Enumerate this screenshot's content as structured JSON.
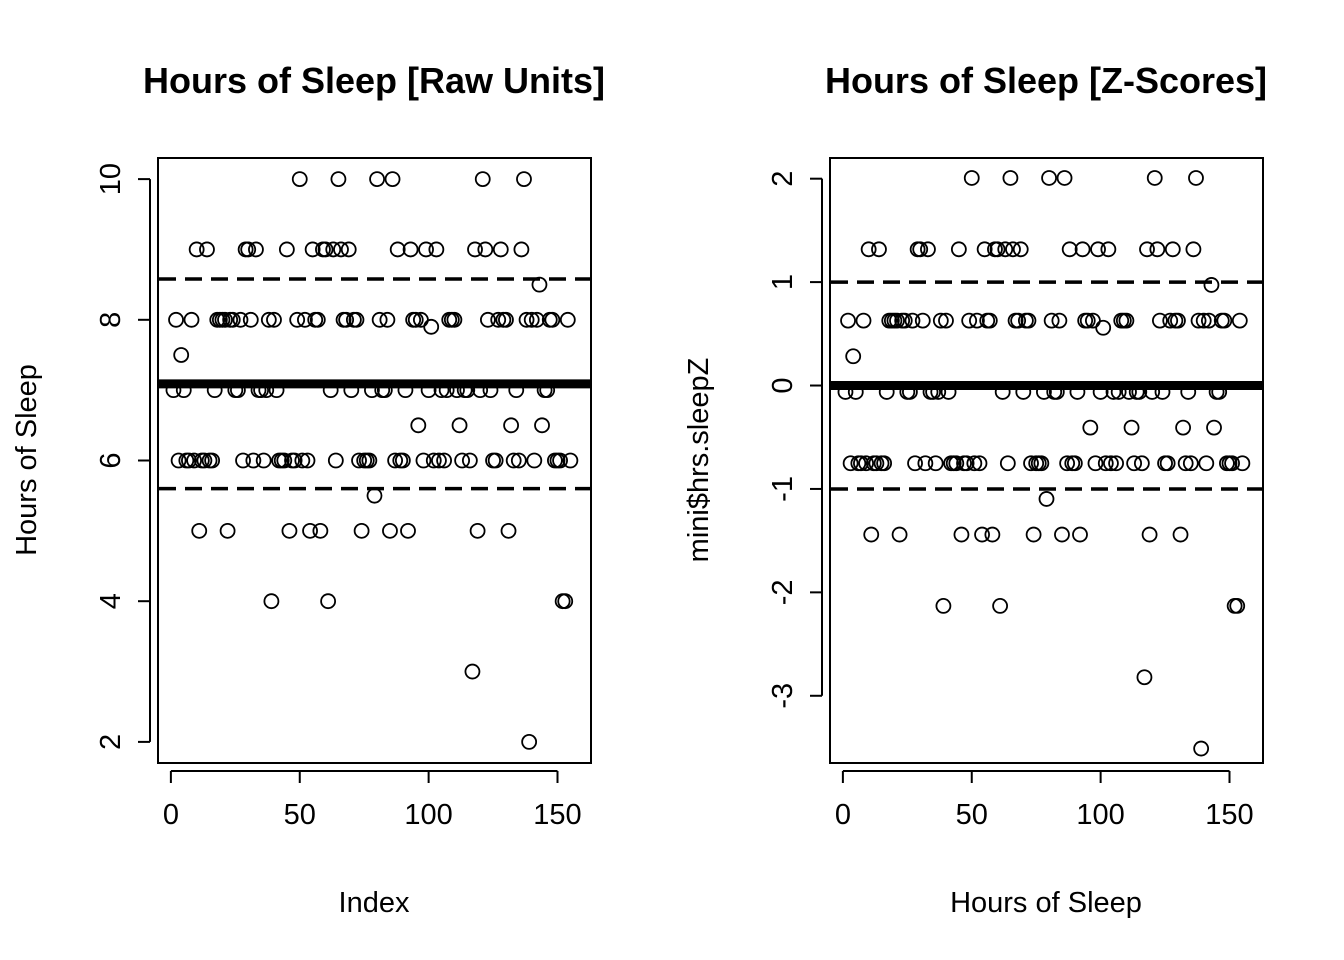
{
  "chart_data": [
    {
      "type": "scatter",
      "title": "Hours of Sleep [Raw Units]",
      "xlabel": "Index",
      "ylabel": "Hours of Sleep",
      "xlim": [
        -5,
        163
      ],
      "ylim": [
        1.7,
        10.3
      ],
      "xticks": [
        0,
        50,
        100,
        150
      ],
      "yticks": [
        2,
        4,
        6,
        8,
        10
      ],
      "xtick_labels": [
        "0",
        "50",
        "100",
        "150"
      ],
      "ytick_labels": [
        "2",
        "4",
        "6",
        "8",
        "10"
      ],
      "grid": false,
      "reference_lines": [
        {
          "y": 7.09,
          "style": "thick-solid"
        },
        {
          "y": 8.58,
          "style": "dashed"
        },
        {
          "y": 5.6,
          "style": "dashed"
        }
      ],
      "points": [
        [
          1,
          7
        ],
        [
          2,
          8
        ],
        [
          3,
          6
        ],
        [
          4,
          7.5
        ],
        [
          5,
          7
        ],
        [
          6,
          6
        ],
        [
          7,
          6
        ],
        [
          8,
          8
        ],
        [
          9,
          6
        ],
        [
          10,
          9
        ],
        [
          11,
          5
        ],
        [
          12,
          6
        ],
        [
          13,
          6
        ],
        [
          14,
          9
        ],
        [
          15,
          6
        ],
        [
          16,
          6
        ],
        [
          17,
          7
        ],
        [
          18,
          8
        ],
        [
          19,
          8
        ],
        [
          20,
          8
        ],
        [
          21,
          8
        ],
        [
          22,
          5
        ],
        [
          23,
          8
        ],
        [
          24,
          8
        ],
        [
          25,
          7
        ],
        [
          26,
          7
        ],
        [
          27,
          8
        ],
        [
          28,
          6
        ],
        [
          29,
          9
        ],
        [
          30,
          9
        ],
        [
          31,
          8
        ],
        [
          32,
          6
        ],
        [
          33,
          9
        ],
        [
          34,
          7
        ],
        [
          35,
          7
        ],
        [
          36,
          6
        ],
        [
          37,
          7
        ],
        [
          38,
          8
        ],
        [
          39,
          4
        ],
        [
          40,
          8
        ],
        [
          41,
          7
        ],
        [
          42,
          6
        ],
        [
          43,
          6
        ],
        [
          44,
          6
        ],
        [
          45,
          9
        ],
        [
          46,
          5
        ],
        [
          47,
          6
        ],
        [
          48,
          6
        ],
        [
          49,
          8
        ],
        [
          50,
          10
        ],
        [
          51,
          6
        ],
        [
          52,
          8
        ],
        [
          53,
          6
        ],
        [
          54,
          5
        ],
        [
          55,
          9
        ],
        [
          56,
          8
        ],
        [
          57,
          8
        ],
        [
          58,
          5
        ],
        [
          59,
          9
        ],
        [
          60,
          9
        ],
        [
          61,
          4
        ],
        [
          62,
          7
        ],
        [
          63,
          9
        ],
        [
          64,
          6
        ],
        [
          65,
          10
        ],
        [
          66,
          9
        ],
        [
          67,
          8
        ],
        [
          68,
          8
        ],
        [
          69,
          9
        ],
        [
          70,
          7
        ],
        [
          71,
          8
        ],
        [
          72,
          8
        ],
        [
          73,
          6
        ],
        [
          74,
          5
        ],
        [
          75,
          6
        ],
        [
          76,
          6
        ],
        [
          77,
          6
        ],
        [
          78,
          7
        ],
        [
          79,
          5.5
        ],
        [
          80,
          10
        ],
        [
          81,
          8
        ],
        [
          82,
          7
        ],
        [
          83,
          7
        ],
        [
          84,
          8
        ],
        [
          85,
          5
        ],
        [
          86,
          10
        ],
        [
          87,
          6
        ],
        [
          88,
          9
        ],
        [
          89,
          6
        ],
        [
          90,
          6
        ],
        [
          91,
          7
        ],
        [
          92,
          5
        ],
        [
          93,
          9
        ],
        [
          94,
          8
        ],
        [
          95,
          8
        ],
        [
          96,
          6.5
        ],
        [
          97,
          8
        ],
        [
          98,
          6
        ],
        [
          99,
          9
        ],
        [
          100,
          7
        ],
        [
          101,
          7.9
        ],
        [
          102,
          6
        ],
        [
          103,
          9
        ],
        [
          104,
          6
        ],
        [
          105,
          7
        ],
        [
          106,
          6
        ],
        [
          107,
          7
        ],
        [
          108,
          8
        ],
        [
          109,
          8
        ],
        [
          110,
          8
        ],
        [
          111,
          7
        ],
        [
          112,
          6.5
        ],
        [
          113,
          6
        ],
        [
          114,
          7
        ],
        [
          115,
          7
        ],
        [
          116,
          6
        ],
        [
          117,
          3
        ],
        [
          118,
          9
        ],
        [
          119,
          5
        ],
        [
          120,
          7
        ],
        [
          121,
          10
        ],
        [
          122,
          9
        ],
        [
          123,
          8
        ],
        [
          124,
          7
        ],
        [
          125,
          6
        ],
        [
          126,
          6
        ],
        [
          127,
          8
        ],
        [
          128,
          9
        ],
        [
          129,
          8
        ],
        [
          130,
          8
        ],
        [
          131,
          5
        ],
        [
          132,
          6.5
        ],
        [
          133,
          6
        ],
        [
          134,
          7
        ],
        [
          135,
          6
        ],
        [
          136,
          9
        ],
        [
          137,
          10
        ],
        [
          138,
          8
        ],
        [
          139,
          2
        ],
        [
          140,
          8
        ],
        [
          141,
          6
        ],
        [
          142,
          8
        ],
        [
          143,
          8.5
        ],
        [
          144,
          6.5
        ],
        [
          145,
          7
        ],
        [
          146,
          7
        ],
        [
          147,
          8
        ],
        [
          148,
          8
        ],
        [
          149,
          6
        ],
        [
          150,
          6
        ],
        [
          151,
          6
        ],
        [
          152,
          4
        ],
        [
          153,
          4
        ],
        [
          154,
          8
        ],
        [
          155,
          6
        ]
      ]
    },
    {
      "type": "scatter",
      "title": "Hours of Sleep [Z-Scores]",
      "xlabel": "Hours of Sleep",
      "ylabel": "mini$hrs.sleepZ",
      "xlim": [
        -5,
        163
      ],
      "ylim": [
        -3.65,
        2.2
      ],
      "xticks": [
        0,
        50,
        100,
        150
      ],
      "yticks": [
        -3,
        -2,
        -1,
        0,
        1,
        2
      ],
      "xtick_labels": [
        "0",
        "50",
        "100",
        "150"
      ],
      "ytick_labels": [
        "-3",
        "-2",
        "-1",
        "0",
        "1",
        "2"
      ],
      "grid": false,
      "reference_lines": [
        {
          "y": 0,
          "style": "thick-solid"
        },
        {
          "y": 1,
          "style": "dashed"
        },
        {
          "y": -1,
          "style": "dashed"
        }
      ],
      "z_transform": {
        "mean": 7.09,
        "sd": 1.45
      },
      "points_source": "same as chart 1 values converted to z-scores"
    }
  ]
}
